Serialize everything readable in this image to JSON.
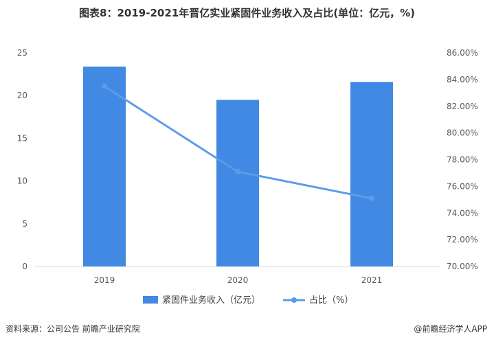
{
  "title": "图表8：2019-2021年晋亿实业紧固件业务收入及占比(单位：亿元，%)",
  "chart_data": {
    "type": "bar",
    "categories": [
      "2019",
      "2020",
      "2021"
    ],
    "series": [
      {
        "name": "紧固件业务收入（亿元）",
        "type": "bar",
        "axis": "left",
        "values": [
          23.4,
          19.5,
          21.6
        ],
        "color": "#4189E3"
      },
      {
        "name": "占比（%）",
        "type": "line",
        "axis": "right",
        "values": [
          83.5,
          77.1,
          75.1
        ],
        "color": "#5C9BE8"
      }
    ],
    "left_axis": {
      "min": 0,
      "max": 25,
      "ticks": [
        "0",
        "5",
        "10",
        "15",
        "20",
        "25"
      ]
    },
    "right_axis": {
      "min": 70,
      "max": 86,
      "ticks": [
        "70.00%",
        "72.00%",
        "74.00%",
        "76.00%",
        "78.00%",
        "80.00%",
        "82.00%",
        "84.00%",
        "86.00%"
      ]
    },
    "grid": false,
    "legend": "bottom"
  },
  "footer": {
    "source": "资料来源：公司公告 前瞻产业研究院",
    "brand": "@前瞻经济学人APP"
  }
}
